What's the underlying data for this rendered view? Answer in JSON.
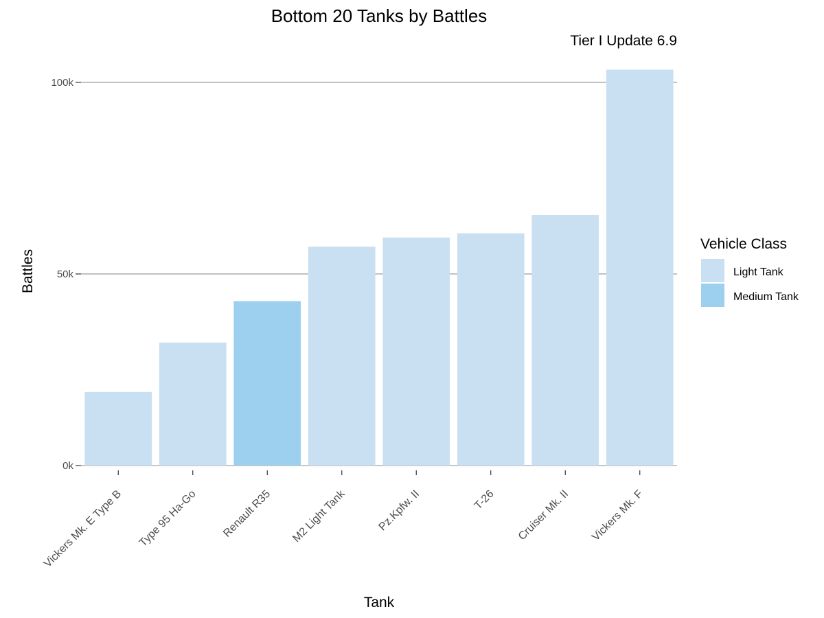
{
  "chart_data": {
    "type": "bar",
    "title": "Bottom 20 Tanks by Battles",
    "subtitle": "Tier I Update 6.9",
    "xlabel": "Tank",
    "ylabel": "Battles",
    "ylim": [
      0,
      105000
    ],
    "yticks": [
      0,
      50000,
      100000
    ],
    "ytick_labels": [
      "0k",
      "50k",
      "100k"
    ],
    "grid": true,
    "legend": {
      "title": "Vehicle Class",
      "placement": "right",
      "entries": [
        {
          "label": "Light Tank",
          "color": "#c9dff2"
        },
        {
          "label": "Medium Tank",
          "color": "#9dd0ef"
        }
      ]
    },
    "categories": [
      "Vickers Mk. E Type B",
      "Type 95 Ha-Go",
      "Renault R35",
      "M2 Light Tank",
      "Pz.Kpfw. II",
      "T-26",
      "Cruiser Mk. II",
      "Vickers Mk. F"
    ],
    "values": [
      19200,
      32100,
      42900,
      57100,
      59500,
      60600,
      65400,
      103300
    ],
    "classes": [
      "Light Tank",
      "Light Tank",
      "Medium Tank",
      "Light Tank",
      "Light Tank",
      "Light Tank",
      "Light Tank",
      "Light Tank"
    ]
  }
}
